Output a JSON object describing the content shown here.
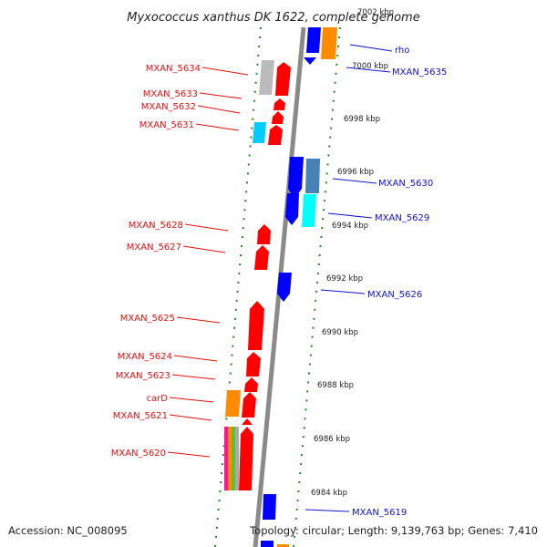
{
  "title": "Myxococcus xanthus DK 1622, complete genome",
  "accession": "Accession: NC_008095",
  "summary": "Topology: circular; Length: 9,139,763 bp; Genes: 7,410",
  "top_tick_partial": "7002 kbp",
  "colors": {
    "strand": "#8a8a8a",
    "dots": "#1e8a1e",
    "forward_label": "#dd1111",
    "reverse_label": "#1111cc",
    "red": "#ff0000",
    "blue": "#0000ff",
    "orange": "#ff8c00",
    "gray": "#bbbbbb",
    "cyan": "#00ccff",
    "steel": "#4682b4",
    "aqua": "#00ffff"
  },
  "kbp_ticks": [
    "7000 kbp",
    "6998 kbp",
    "6996 kbp",
    "6994 kbp",
    "6992 kbp",
    "6990 kbp",
    "6988 kbp",
    "6986 kbp",
    "6984 kbp"
  ],
  "left_labels": [
    "MXAN_5634",
    "MXAN_5633",
    "MXAN_5632",
    "MXAN_5631",
    "MXAN_5628",
    "MXAN_5627",
    "MXAN_5625",
    "MXAN_5624",
    "MXAN_5623",
    "carD",
    "MXAN_5621",
    "MXAN_5620"
  ],
  "right_labels": [
    "rho",
    "MXAN_5635",
    "MXAN_5630",
    "MXAN_5629",
    "MXAN_5626",
    "MXAN_5619"
  ]
}
